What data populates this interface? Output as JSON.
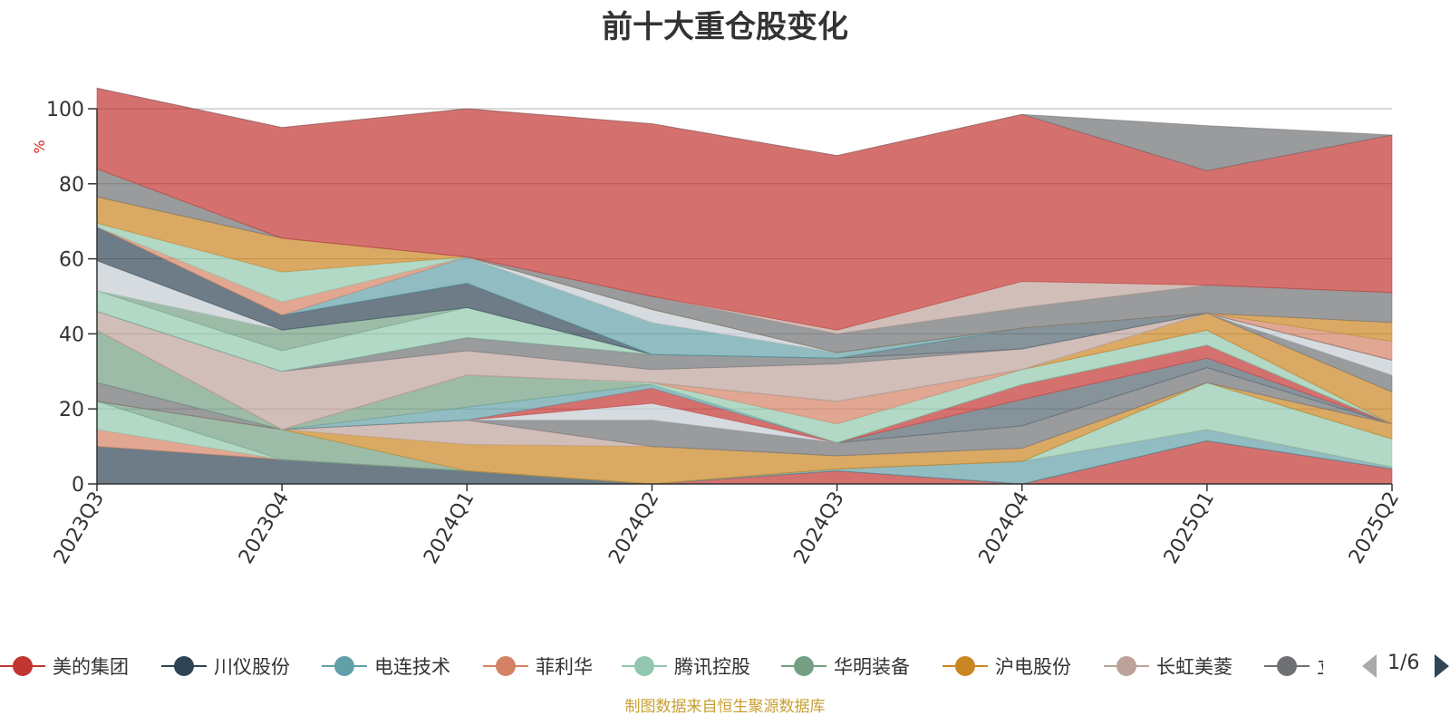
{
  "title": "前十大重仓股变化",
  "source_note": "制图数据来自恒生聚源数据库",
  "pager": {
    "text": "1/6"
  },
  "chart_data": {
    "type": "area",
    "stacked": true,
    "ylabel": "%",
    "ylim": [
      0,
      100
    ],
    "yticks": [
      0,
      20,
      40,
      60,
      80,
      100
    ],
    "grid": true,
    "categories": [
      "2023Q3",
      "2023Q4",
      "2024Q1",
      "2024Q2",
      "2024Q3",
      "2024Q4",
      "2025Q1",
      "2025Q2"
    ],
    "legend_position": "bottom",
    "series": [
      {
        "name": "美的集团",
        "color": "#c23531",
        "values": [
          0,
          0,
          0,
          0,
          3.5,
          0,
          11.5,
          4
        ]
      },
      {
        "name": "川仪股份",
        "color": "#2f4554",
        "values": [
          10,
          6.5,
          3.5,
          0,
          0,
          0,
          0,
          0
        ]
      },
      {
        "name": "电连技术",
        "color": "#61a0a8",
        "values": [
          0,
          0,
          0,
          0,
          0.5,
          6,
          3,
          0.5
        ]
      },
      {
        "name": "菲利华",
        "color": "#d48265",
        "values": [
          4.5,
          0,
          0,
          0,
          0,
          0,
          0,
          0
        ]
      },
      {
        "name": "腾讯控股",
        "color": "#91c7ae",
        "values": [
          7.5,
          0,
          0,
          0,
          0,
          0,
          12.5,
          7.5
        ]
      },
      {
        "name": "华明装备",
        "color": "#749f83",
        "values": [
          0,
          8,
          0,
          0,
          0,
          0,
          0,
          0
        ]
      },
      {
        "name": "沪电股份",
        "color": "#ca8622",
        "values": [
          0,
          0,
          7,
          10,
          3.5,
          3.5,
          0,
          4
        ]
      },
      {
        "name": "长虹美菱",
        "color": "#bda29a",
        "values": [
          0,
          0,
          6.5,
          0,
          0,
          0,
          0,
          0
        ]
      },
      {
        "name": "立讯精密",
        "color": "#6e7074",
        "values": [
          5,
          0,
          0,
          7,
          3.5,
          6,
          4,
          0
        ]
      },
      {
        "name": "",
        "color": "#546570",
        "values": [
          0,
          0,
          0,
          0,
          0,
          7,
          2.5,
          0
        ]
      },
      {
        "name": "",
        "color": "#c4ccd3",
        "values": [
          0,
          0,
          0,
          4.5,
          0,
          0,
          0,
          0
        ]
      },
      {
        "name": "",
        "color": "#c23531",
        "values": [
          0,
          0,
          0,
          4,
          0,
          4,
          3.5,
          0
        ]
      },
      {
        "name": "",
        "color": "#61a0a8",
        "values": [
          0,
          0,
          3.5,
          1,
          0,
          0,
          0,
          0
        ]
      },
      {
        "name": "",
        "color": "#749f83",
        "values": [
          14,
          0,
          8.5,
          0,
          0,
          0,
          0,
          0
        ]
      },
      {
        "name": "",
        "color": "#91c7ae",
        "values": [
          0,
          0,
          0,
          0.5,
          5,
          4,
          4,
          0
        ]
      },
      {
        "name": "",
        "color": "#d48265",
        "values": [
          0,
          0,
          0,
          0,
          6,
          0,
          0,
          0
        ]
      },
      {
        "name": "",
        "color": "#ca8622",
        "values": [
          0,
          0,
          0,
          0,
          0,
          0,
          4.5,
          8.5
        ]
      },
      {
        "name": "",
        "color": "#6e7074",
        "values": [
          0,
          0,
          0,
          0,
          0,
          0,
          0,
          4.5
        ]
      },
      {
        "name": "",
        "color": "#c4ccd3",
        "values": [
          0,
          0,
          0,
          0,
          0,
          0,
          0,
          4
        ]
      },
      {
        "name": "",
        "color": "#bda29a",
        "values": [
          5,
          15.5,
          6.5,
          3.5,
          10,
          5.5,
          0,
          0
        ]
      },
      {
        "name": "",
        "color": "#6e7074",
        "values": [
          0,
          0,
          3.5,
          4,
          1.5,
          0,
          0,
          0
        ]
      },
      {
        "name": "",
        "color": "#546570",
        "values": [
          0,
          0,
          0,
          0,
          0,
          5.5,
          0,
          0
        ]
      },
      {
        "name": "",
        "color": "#91c7ae",
        "values": [
          5.5,
          5.5,
          8,
          0,
          0,
          0,
          0,
          0
        ]
      },
      {
        "name": "",
        "color": "#749f83",
        "values": [
          0,
          5.5,
          0,
          0,
          0,
          0,
          0,
          0
        ]
      },
      {
        "name": "",
        "color": "#c4ccd3",
        "values": [
          8,
          0,
          0,
          0,
          0,
          0,
          0,
          0
        ]
      },
      {
        "name": "",
        "color": "#2f4554",
        "values": [
          9,
          4,
          6.5,
          0,
          0,
          0,
          0,
          0
        ]
      },
      {
        "name": "",
        "color": "#61a0a8",
        "values": [
          0,
          0,
          7,
          8.5,
          1.5,
          0,
          0,
          0
        ]
      },
      {
        "name": "",
        "color": "#d48265",
        "values": [
          0,
          3.5,
          0,
          0,
          0,
          0,
          0,
          5
        ]
      },
      {
        "name": "",
        "color": "#91c7ae",
        "values": [
          1,
          8,
          0,
          0,
          0,
          0,
          0,
          0
        ]
      },
      {
        "name": "",
        "color": "#c4ccd3",
        "values": [
          0,
          0,
          0,
          3.5,
          0,
          0,
          0,
          0
        ]
      },
      {
        "name": "",
        "color": "#ca8622",
        "values": [
          7,
          9,
          0,
          0,
          0,
          0,
          0,
          5
        ]
      },
      {
        "name": "",
        "color": "#6e7074",
        "values": [
          7.5,
          0,
          0,
          3.5,
          5,
          5.5,
          7.5,
          8
        ]
      },
      {
        "name": "",
        "color": "#bda29a",
        "values": [
          0,
          0,
          0,
          0,
          1,
          7,
          0,
          0
        ]
      },
      {
        "name": "",
        "color": "#c23531",
        "values": [
          21.5,
          29.5,
          39.5,
          46,
          46.5,
          44.5,
          30.5,
          42
        ]
      },
      {
        "name": "",
        "color": "#6e7074",
        "values": [
          0,
          0,
          0,
          0,
          0,
          0,
          12,
          0
        ]
      }
    ]
  }
}
